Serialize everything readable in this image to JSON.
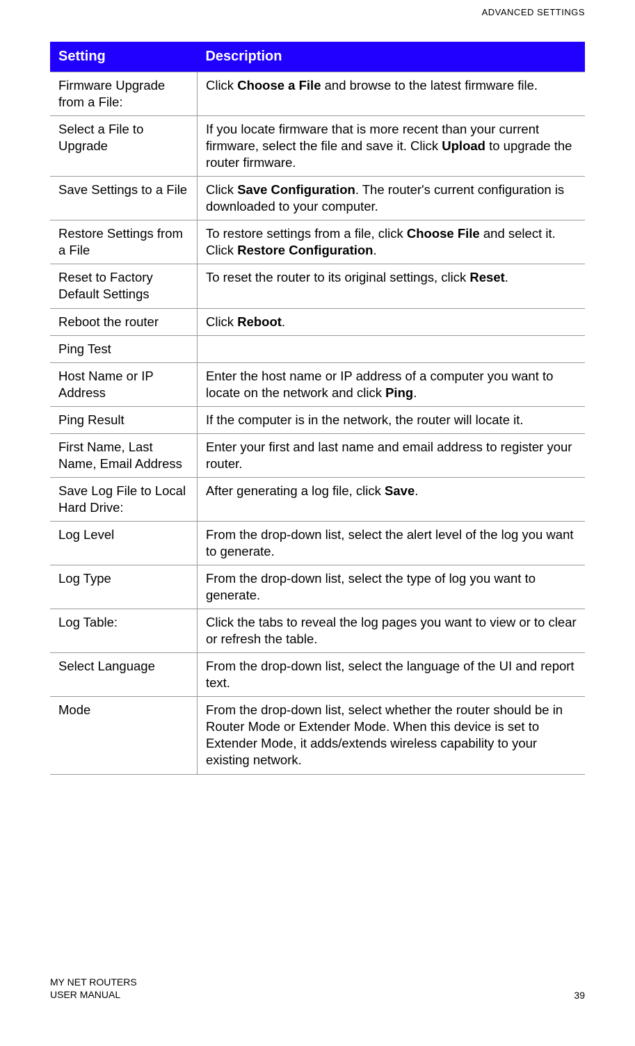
{
  "header": {
    "section_title": "ADVANCED SETTINGS"
  },
  "table": {
    "columns": [
      "Setting",
      "Description"
    ],
    "header_bg_color": "#2000ff",
    "header_text_color": "#ffffff",
    "border_color": "#999999",
    "rows": [
      {
        "setting": "Firmware Upgrade from a File:",
        "description_parts": [
          {
            "text": "Click ",
            "bold": false
          },
          {
            "text": "Choose a File",
            "bold": true
          },
          {
            "text": " and browse to the latest firmware file.",
            "bold": false
          }
        ]
      },
      {
        "setting": "Select a File to Upgrade",
        "description_parts": [
          {
            "text": "If you locate firmware that is more recent than your current firmware, select the file and save it. Click ",
            "bold": false
          },
          {
            "text": "Upload",
            "bold": true
          },
          {
            "text": " to upgrade the router firmware.",
            "bold": false
          }
        ]
      },
      {
        "setting": "Save Settings to a File",
        "description_parts": [
          {
            "text": "Click ",
            "bold": false
          },
          {
            "text": "Save Configuration",
            "bold": true
          },
          {
            "text": ". The router's current configuration is downloaded to your computer.",
            "bold": false
          }
        ]
      },
      {
        "setting": "Restore Settings from a File",
        "description_parts": [
          {
            "text": "To restore settings from a file, click ",
            "bold": false
          },
          {
            "text": "Choose File",
            "bold": true
          },
          {
            "text": " and select it. Click ",
            "bold": false
          },
          {
            "text": "Restore Configuration",
            "bold": true
          },
          {
            "text": ".",
            "bold": false
          }
        ]
      },
      {
        "setting": "Reset to Factory Default Settings",
        "description_parts": [
          {
            "text": "To reset the router to its original settings, click ",
            "bold": false
          },
          {
            "text": "Reset",
            "bold": true
          },
          {
            "text": ".",
            "bold": false
          }
        ]
      },
      {
        "setting": "Reboot the router",
        "description_parts": [
          {
            "text": "Click ",
            "bold": false
          },
          {
            "text": "Reboot",
            "bold": true
          },
          {
            "text": ".",
            "bold": false
          }
        ]
      },
      {
        "setting": "Ping Test",
        "description_parts": []
      },
      {
        "setting": "Host Name or IP Address",
        "description_parts": [
          {
            "text": "Enter the host name or IP address of a computer you want to locate on the network and click ",
            "bold": false
          },
          {
            "text": "Ping",
            "bold": true
          },
          {
            "text": ".",
            "bold": false
          }
        ]
      },
      {
        "setting": "Ping Result",
        "description_parts": [
          {
            "text": "If the computer is in the network, the router will locate it.",
            "bold": false
          }
        ]
      },
      {
        "setting": "First Name, Last Name, Email Address",
        "description_parts": [
          {
            "text": "Enter your first and last name and email address to register your router.",
            "bold": false
          }
        ]
      },
      {
        "setting": "Save Log File to Local Hard Drive:",
        "description_parts": [
          {
            "text": "After generating a log file, click ",
            "bold": false
          },
          {
            "text": "Save",
            "bold": true
          },
          {
            "text": ".",
            "bold": false
          }
        ]
      },
      {
        "setting": "Log Level",
        "description_parts": [
          {
            "text": "From the drop-down list, select the alert level of the log you want to generate.",
            "bold": false
          }
        ]
      },
      {
        "setting": "Log Type",
        "description_parts": [
          {
            "text": "From the drop-down list, select the type of log you want to generate.",
            "bold": false
          }
        ]
      },
      {
        "setting": "Log Table:",
        "description_parts": [
          {
            "text": "Click the tabs to reveal the log pages you want to view or to clear or refresh the table.",
            "bold": false
          }
        ]
      },
      {
        "setting": "Select Language",
        "description_parts": [
          {
            "text": "From the drop-down list, select the language of the UI and report text.",
            "bold": false
          }
        ]
      },
      {
        "setting": "Mode",
        "description_parts": [
          {
            "text": "From the drop-down list, select whether the router should be in Router Mode or Extender Mode. When this device is set to Extender Mode, it adds/extends wireless capability to your existing network.",
            "bold": false
          }
        ]
      }
    ]
  },
  "footer": {
    "left_line1": "MY NET ROUTERS",
    "left_line2": "USER MANUAL",
    "page_number": "39"
  }
}
